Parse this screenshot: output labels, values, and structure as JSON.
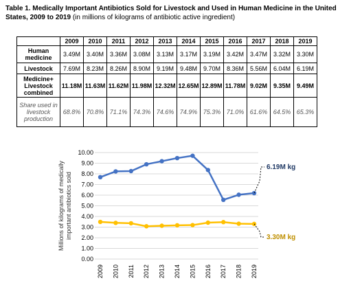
{
  "table": {
    "title_bold": "Table 1.  Medically Important Antibiotics Sold for Livestock and Used in Human Medicine in the United States, 2009 to 2019",
    "title_normal": "(in millions of kilograms of antibiotic active ingredient)",
    "years": [
      "2009",
      "2010",
      "2011",
      "2012",
      "2013",
      "2014",
      "2015",
      "2016",
      "2017",
      "2018",
      "2019"
    ],
    "rows": [
      {
        "label": "Human medicine",
        "values": [
          "3.49M",
          "3.40M",
          "3.36M",
          "3.08M",
          "3.13M",
          "3.17M",
          "3.19M",
          "3.42M",
          "3.47M",
          "3.32M",
          "3.30M"
        ]
      },
      {
        "label": "Livestock",
        "values": [
          "7.69M",
          "8.23M",
          "8.26M",
          "8.90M",
          "9.19M",
          "9.48M",
          "9.70M",
          "8.36M",
          "5.56M",
          "6.04M",
          "6.19M"
        ]
      },
      {
        "label": "Medicine+ Livestock combined",
        "values": [
          "11.18M",
          "11.63M",
          "11.62M",
          "11.98M",
          "12.32M",
          "12.65M",
          "12.89M",
          "11.78M",
          "9.02M",
          "9.35M",
          "9.49M"
        ]
      },
      {
        "label": "Share used in livestock production",
        "values": [
          "68.8%",
          "70.8%",
          "71.1%",
          "74.3%",
          "74.6%",
          "74.9%",
          "75.3%",
          "71.0%",
          "61.6%",
          "64.5%",
          "65.3%"
        ]
      }
    ]
  },
  "chart_data": {
    "type": "line",
    "x": [
      "2009",
      "2010",
      "2011",
      "2012",
      "2013",
      "2014",
      "2015",
      "2016",
      "2017",
      "2018",
      "2019"
    ],
    "series": [
      {
        "values": [
          7.69,
          8.23,
          8.26,
          8.9,
          9.19,
          9.48,
          9.7,
          8.36,
          5.56,
          6.04,
          6.19
        ],
        "color": "#4472C4",
        "end_label": "6.19M kg"
      },
      {
        "values": [
          3.49,
          3.4,
          3.36,
          3.08,
          3.13,
          3.17,
          3.19,
          3.42,
          3.47,
          3.32,
          3.3
        ],
        "color": "#FFC000",
        "end_label": "3.30M kg"
      }
    ],
    "ylabel": "Millions of kilograms of medically important antibiotics sold",
    "ylim": [
      0,
      10
    ],
    "yticks": [
      "0.00",
      "1.00",
      "2.00",
      "3.00",
      "4.00",
      "5.00",
      "6.00",
      "7.00",
      "8.00",
      "9.00",
      "10.00"
    ],
    "grid": true,
    "end_label_colors": [
      "#1F3864",
      "#BF8F00"
    ]
  }
}
